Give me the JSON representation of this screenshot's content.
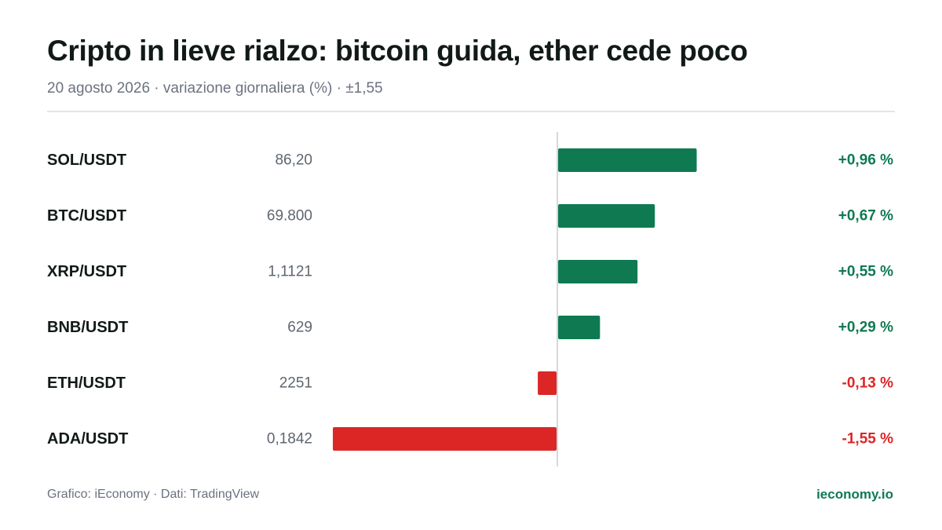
{
  "header": {
    "title": "Cripto in lieve rialzo: bitcoin guida, ether cede poco",
    "subtitle": "20 agosto 2026 · variazione giornaliera (%) · ±1,55"
  },
  "footer": {
    "source": "Grafico: iEconomy · Dati: TradingView",
    "brand": "ieconomy.io"
  },
  "colors": {
    "positive": "#0f7a52",
    "negative": "#dc2626",
    "axis": "#d4d7db"
  },
  "chart_data": {
    "type": "bar",
    "orientation": "horizontal",
    "xlim": [
      -1.55,
      1.55
    ],
    "grid": false,
    "categories": [
      "SOL/USDT",
      "BTC/USDT",
      "XRP/USDT",
      "BNB/USDT",
      "ETH/USDT",
      "ADA/USDT"
    ],
    "prices": [
      "86,20",
      "69.800",
      "1,1121",
      "629",
      "2251",
      "0,1842"
    ],
    "values": [
      0.96,
      0.67,
      0.55,
      0.29,
      -0.13,
      -1.55
    ],
    "value_labels": [
      "+0,96 %",
      "+0,67 %",
      "+0,55 %",
      "+0,29 %",
      "-0,13 %",
      "-1,55 %"
    ]
  }
}
